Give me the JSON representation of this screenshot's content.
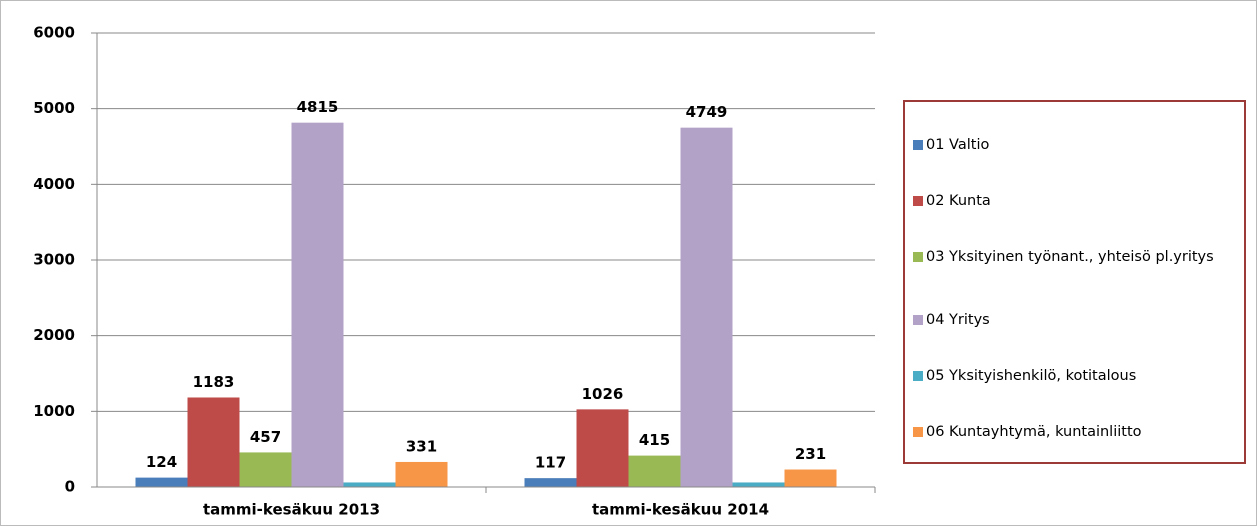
{
  "chart_data": {
    "type": "bar",
    "categories": [
      "tammi-kesäkuu 2013",
      "tammi-kesäkuu 2014"
    ],
    "series": [
      {
        "name": "01 Valtio",
        "color": "#4a7ebb",
        "values": [
          124,
          117
        ]
      },
      {
        "name": "02 Kunta",
        "color": "#be4b48",
        "values": [
          1183,
          1026
        ]
      },
      {
        "name": "03 Yksityinen työnant., yhteisö pl.yritys",
        "color": "#98b954",
        "values": [
          457,
          415
        ]
      },
      {
        "name": "04 Yritys",
        "color": "#b3a2c7",
        "values": [
          4815,
          4749
        ]
      },
      {
        "name": "05 Yksityishenkilö, kotitalous",
        "color": "#4bacc6",
        "values": [
          60,
          60
        ],
        "show_labels": false
      },
      {
        "name": "06 Kuntayhtymä, kuntainliitto",
        "color": "#f79646",
        "values": [
          331,
          231
        ]
      }
    ],
    "ylim": [
      0,
      6000
    ],
    "yticks": [
      0,
      1000,
      2000,
      3000,
      4000,
      5000,
      6000
    ],
    "grid": true,
    "legend": "right"
  }
}
